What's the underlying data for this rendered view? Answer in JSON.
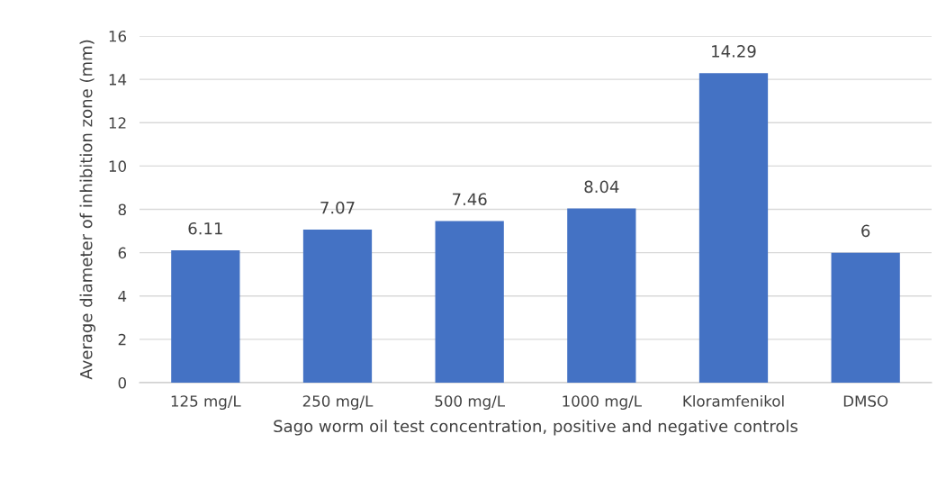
{
  "chart_data": {
    "type": "bar",
    "xlabel": "Sago worm oil test concentration, positive and negative controls",
    "ylabel": "Average diameter of inhibition zone (mm)",
    "categories": [
      "125 mg/L",
      "250 mg/L",
      "500 mg/L",
      "1000 mg/L",
      "Kloramfenikol",
      "DMSO"
    ],
    "values": [
      6.11,
      7.07,
      7.46,
      8.04,
      14.29,
      6
    ],
    "color": "#4472c4",
    "ylim": [
      0,
      16
    ],
    "yticks": [
      0,
      2,
      4,
      6,
      8,
      10,
      12,
      14,
      16
    ],
    "grid": "y",
    "data_labels": true,
    "legend": false
  }
}
